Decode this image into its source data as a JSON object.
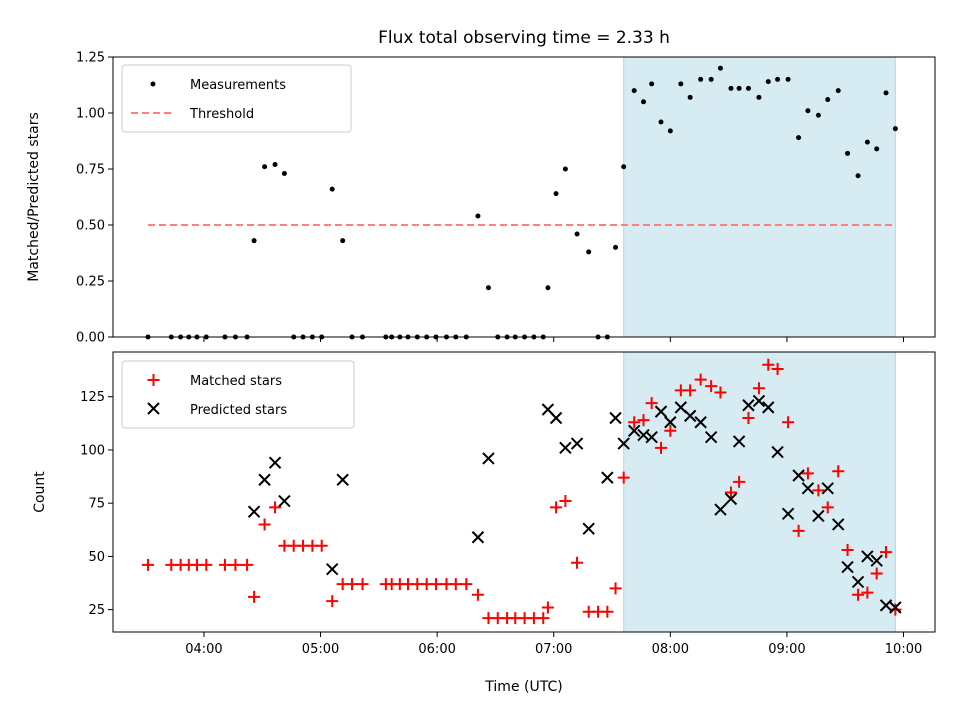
{
  "chart_data": {
    "title": "Flux total observing time = 2.33 h",
    "xlabel": "Time (UTC)",
    "x_unit": "hours UTC",
    "xlim": [
      3.22,
      10.27
    ],
    "xticks": [
      4,
      5,
      6,
      7,
      8,
      9,
      10
    ],
    "xticklabels": [
      "04:00",
      "05:00",
      "06:00",
      "07:00",
      "08:00",
      "09:00",
      "10:00"
    ],
    "x": [
      3.52,
      3.72,
      3.8,
      3.87,
      3.94,
      4.02,
      4.18,
      4.27,
      4.37,
      4.43,
      4.52,
      4.61,
      4.69,
      4.77,
      4.85,
      4.93,
      5.01,
      5.1,
      5.19,
      5.27,
      5.36,
      5.56,
      5.61,
      5.68,
      5.75,
      5.83,
      5.91,
      5.99,
      6.08,
      6.16,
      6.25,
      6.35,
      6.44,
      6.52,
      6.6,
      6.67,
      6.75,
      6.83,
      6.91,
      6.95,
      7.02,
      7.1,
      7.2,
      7.3,
      7.38,
      7.46,
      7.53,
      7.6,
      7.69,
      7.77,
      7.84,
      7.92,
      8.0,
      8.09,
      8.17,
      8.26,
      8.35,
      8.43,
      8.52,
      8.59,
      8.67,
      8.76,
      8.84,
      8.92,
      9.01,
      9.1,
      9.18,
      9.27,
      9.35,
      9.44,
      9.52,
      9.61,
      9.69,
      9.77,
      9.85,
      9.93
    ],
    "shaded_region": {
      "x": [
        7.6,
        9.93
      ],
      "color": "#ADD8E6"
    },
    "panels": [
      {
        "type": "scatter",
        "ylabel": "Matched/Predicted stars",
        "ylim": [
          0,
          1.25
        ],
        "yticks": [
          0,
          0.25,
          0.5,
          0.75,
          1.0,
          1.25
        ],
        "yticklabels": [
          "0.00",
          "0.25",
          "0.50",
          "0.75",
          "1.00",
          "1.25"
        ],
        "series": [
          {
            "name": "Measurements",
            "type": "scatter",
            "color": "#000000",
            "y": [
              0,
              0,
              0,
              0,
              0,
              0,
              0,
              0,
              0,
              0.43,
              0.76,
              0.77,
              0.73,
              0,
              0,
              0,
              0,
              0.66,
              0.43,
              0,
              0,
              0,
              0,
              0,
              0,
              0,
              0,
              0,
              0,
              0,
              0,
              0.54,
              0.22,
              0,
              0,
              0,
              0,
              0,
              0,
              0.22,
              0.64,
              0.75,
              0.46,
              0.38,
              0,
              0,
              0.4,
              0.76,
              1.1,
              1.05,
              1.13,
              0.96,
              0.92,
              1.13,
              1.07,
              1.15,
              1.15,
              1.2,
              1.11,
              1.11,
              1.11,
              1.07,
              1.14,
              1.15,
              1.15,
              0.89,
              1.01,
              0.99,
              1.06,
              1.1,
              0.82,
              0.72,
              0.87,
              0.84,
              1.09,
              0.93
            ]
          },
          {
            "name": "Threshold",
            "type": "line",
            "style": "dashed",
            "color": "#FF7F7F",
            "x": [
              3.52,
              9.93
            ],
            "y": [
              0.5,
              0.5
            ]
          }
        ],
        "legend": "upper left"
      },
      {
        "type": "scatter",
        "ylabel": "Count",
        "ylim": [
          14.5,
          146
        ],
        "yticks": [
          25,
          50,
          75,
          100,
          125
        ],
        "yticklabels": [
          "25",
          "50",
          "75",
          "100",
          "125"
        ],
        "series": [
          {
            "name": "Matched stars",
            "marker": "plus",
            "color": "#FF0000",
            "y": [
              46,
              46,
              46,
              46,
              46,
              46,
              46,
              46,
              46,
              31,
              65,
              73,
              55,
              55,
              55,
              55,
              55,
              29,
              37,
              37,
              37,
              37,
              37,
              37,
              37,
              37,
              37,
              37,
              37,
              37,
              37,
              32,
              21,
              21,
              21,
              21,
              21,
              21,
              21,
              26,
              73,
              76,
              47,
              24,
              24,
              24,
              35,
              87,
              113,
              114,
              122,
              101,
              109,
              128,
              128,
              133,
              130,
              127,
              80,
              85,
              115,
              129,
              140,
              138,
              113,
              62,
              89,
              81,
              73,
              90,
              53,
              32,
              33,
              42,
              52,
              25
            ]
          },
          {
            "name": "Predicted stars",
            "marker": "x",
            "color": "#000000",
            "x": [
              4.43,
              4.52,
              4.61,
              4.69,
              5.1,
              5.19,
              6.35,
              6.44,
              6.95,
              7.02,
              7.1,
              7.2,
              7.3,
              7.46,
              7.53,
              7.6,
              7.69,
              7.77,
              7.84,
              7.92,
              8.0,
              8.09,
              8.17,
              8.26,
              8.35,
              8.43,
              8.52,
              8.59,
              8.67,
              8.76,
              8.84,
              8.92,
              9.01,
              9.1,
              9.18,
              9.27,
              9.35,
              9.44,
              9.52,
              9.61,
              9.69,
              9.77,
              9.85,
              9.93
            ],
            "y": [
              71,
              86,
              94,
              76,
              44,
              86,
              59,
              96,
              119,
              115,
              101,
              103,
              63,
              87,
              115,
              103,
              109,
              107,
              106,
              118,
              113,
              120,
              116,
              113,
              106,
              72,
              77,
              104,
              121,
              123,
              120,
              99,
              70,
              88,
              82,
              69,
              82,
              65,
              45,
              38,
              50,
              48,
              27,
              26
            ]
          }
        ],
        "legend": "upper left"
      }
    ]
  }
}
